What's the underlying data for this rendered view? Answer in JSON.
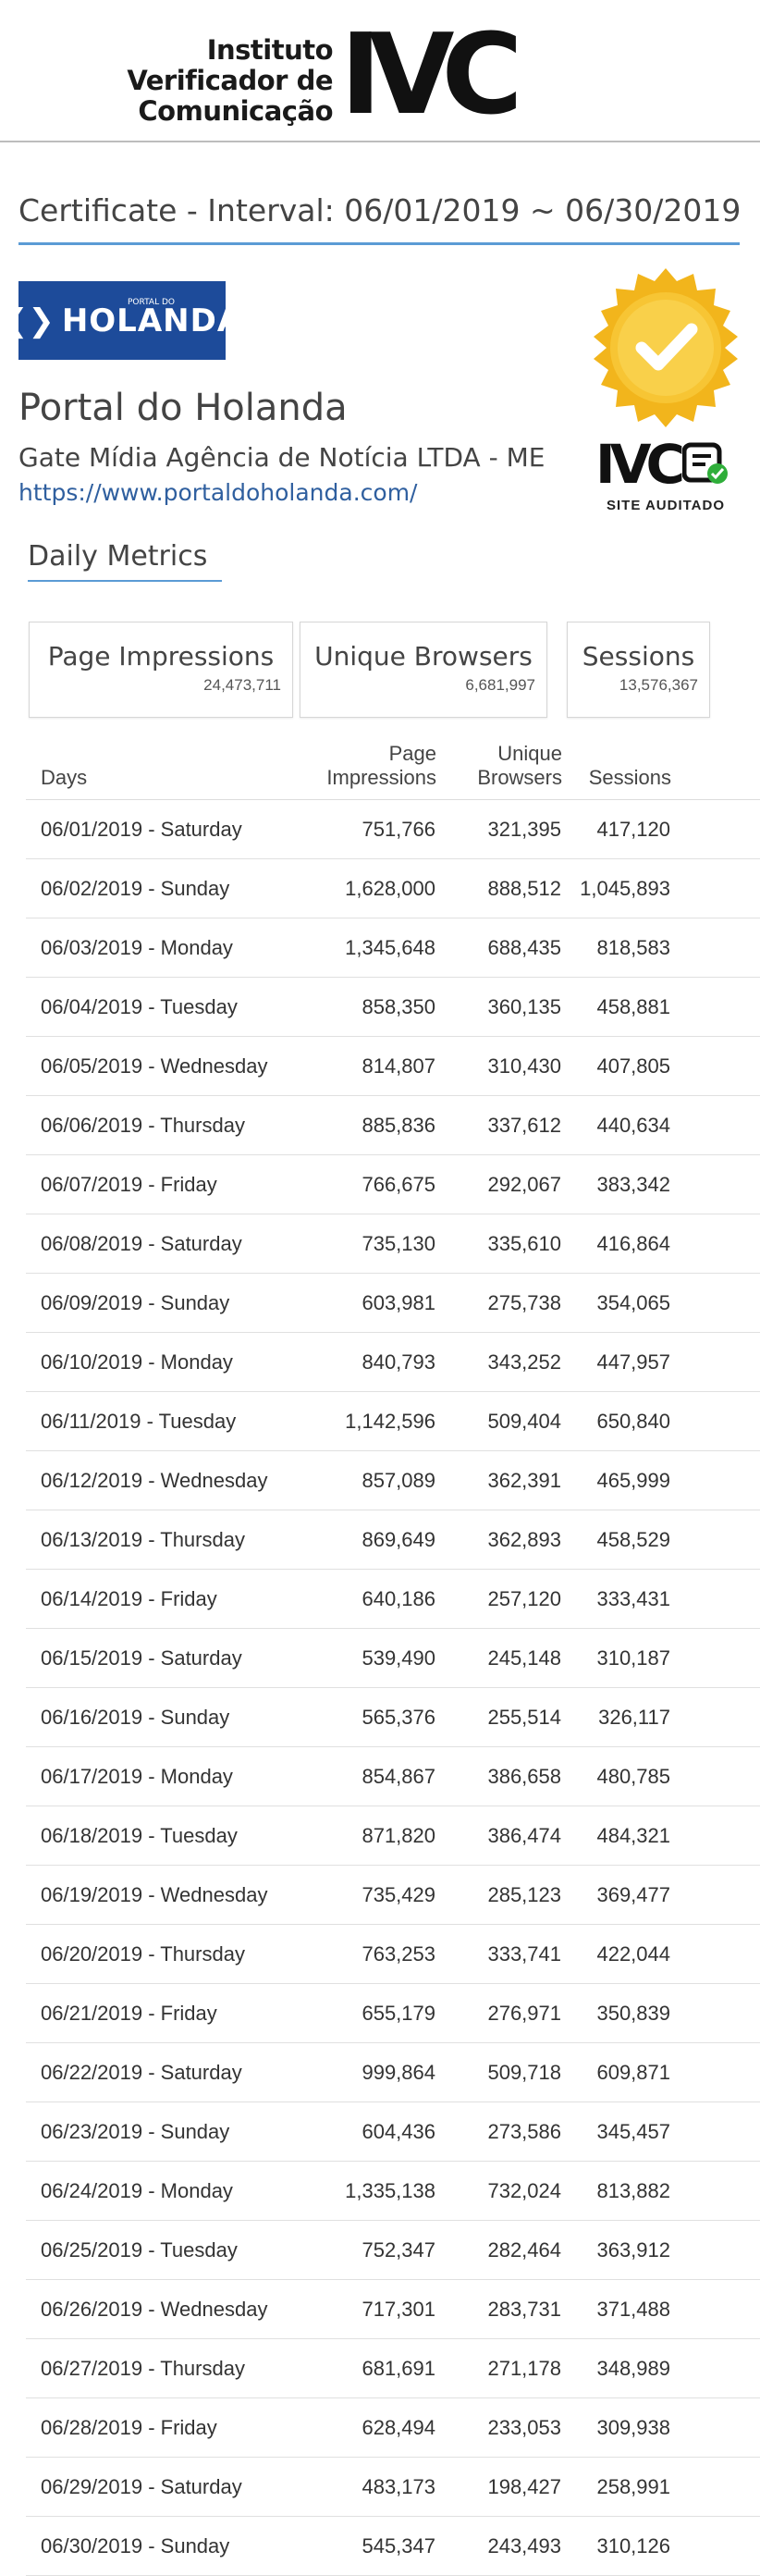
{
  "header": {
    "logo_line1": "Instituto",
    "logo_line2": "Verificador de",
    "logo_line3": "Comunicação",
    "logo_mark": "IVC"
  },
  "certificate_title": "Certificate - Interval: 06/01/2019 ~ 06/30/2019",
  "site": {
    "logo_small_text": "PORTAL DO",
    "logo_text": "HOLANDA",
    "name": "Portal do Holanda",
    "company": "Gate Mídia Agência de Notícia LTDA - ME",
    "url": "https://www.portaldoholanda.com/"
  },
  "audit_badge": {
    "mark": "IVC",
    "label": "SITE AUDITADO",
    "seal_icon": "gold-seal-check-icon",
    "doc_icon": "document-check-icon"
  },
  "tab_label": "Daily Metrics",
  "kpis": [
    {
      "label": "Page Impressions",
      "value": "24,473,711"
    },
    {
      "label": "Unique Browsers",
      "value": "6,681,997"
    },
    {
      "label": "Sessions",
      "value": "13,576,367"
    }
  ],
  "table": {
    "headers": {
      "days": "Days",
      "pi_line1": "Page",
      "pi_line2": "Impressions",
      "ub_line1": "Unique",
      "ub_line2": "Browsers",
      "sessions": "Sessions"
    },
    "rows": [
      {
        "day": "06/01/2019 - Saturday",
        "pi": "751,766",
        "ub": "321,395",
        "s": "417,120"
      },
      {
        "day": "06/02/2019 - Sunday",
        "pi": "1,628,000",
        "ub": "888,512",
        "s": "1,045,893"
      },
      {
        "day": "06/03/2019 - Monday",
        "pi": "1,345,648",
        "ub": "688,435",
        "s": "818,583"
      },
      {
        "day": "06/04/2019 - Tuesday",
        "pi": "858,350",
        "ub": "360,135",
        "s": "458,881"
      },
      {
        "day": "06/05/2019 - Wednesday",
        "pi": "814,807",
        "ub": "310,430",
        "s": "407,805"
      },
      {
        "day": "06/06/2019 - Thursday",
        "pi": "885,836",
        "ub": "337,612",
        "s": "440,634"
      },
      {
        "day": "06/07/2019 - Friday",
        "pi": "766,675",
        "ub": "292,067",
        "s": "383,342"
      },
      {
        "day": "06/08/2019 - Saturday",
        "pi": "735,130",
        "ub": "335,610",
        "s": "416,864"
      },
      {
        "day": "06/09/2019 - Sunday",
        "pi": "603,981",
        "ub": "275,738",
        "s": "354,065"
      },
      {
        "day": "06/10/2019 - Monday",
        "pi": "840,793",
        "ub": "343,252",
        "s": "447,957"
      },
      {
        "day": "06/11/2019 - Tuesday",
        "pi": "1,142,596",
        "ub": "509,404",
        "s": "650,840"
      },
      {
        "day": "06/12/2019 - Wednesday",
        "pi": "857,089",
        "ub": "362,391",
        "s": "465,999"
      },
      {
        "day": "06/13/2019 - Thursday",
        "pi": "869,649",
        "ub": "362,893",
        "s": "458,529"
      },
      {
        "day": "06/14/2019 - Friday",
        "pi": "640,186",
        "ub": "257,120",
        "s": "333,431"
      },
      {
        "day": "06/15/2019 - Saturday",
        "pi": "539,490",
        "ub": "245,148",
        "s": "310,187"
      },
      {
        "day": "06/16/2019 - Sunday",
        "pi": "565,376",
        "ub": "255,514",
        "s": "326,117"
      },
      {
        "day": "06/17/2019 - Monday",
        "pi": "854,867",
        "ub": "386,658",
        "s": "480,785"
      },
      {
        "day": "06/18/2019 - Tuesday",
        "pi": "871,820",
        "ub": "386,474",
        "s": "484,321"
      },
      {
        "day": "06/19/2019 - Wednesday",
        "pi": "735,429",
        "ub": "285,123",
        "s": "369,477"
      },
      {
        "day": "06/20/2019 - Thursday",
        "pi": "763,253",
        "ub": "333,741",
        "s": "422,044"
      },
      {
        "day": "06/21/2019 - Friday",
        "pi": "655,179",
        "ub": "276,971",
        "s": "350,839"
      },
      {
        "day": "06/22/2019 - Saturday",
        "pi": "999,864",
        "ub": "509,718",
        "s": "609,871"
      },
      {
        "day": "06/23/2019 - Sunday",
        "pi": "604,436",
        "ub": "273,586",
        "s": "345,457"
      },
      {
        "day": "06/24/2019 - Monday",
        "pi": "1,335,138",
        "ub": "732,024",
        "s": "813,882"
      },
      {
        "day": "06/25/2019 - Tuesday",
        "pi": "752,347",
        "ub": "282,464",
        "s": "363,912"
      },
      {
        "day": "06/26/2019 - Wednesday",
        "pi": "717,301",
        "ub": "283,731",
        "s": "371,488"
      },
      {
        "day": "06/27/2019 - Thursday",
        "pi": "681,691",
        "ub": "271,178",
        "s": "348,989"
      },
      {
        "day": "06/28/2019 - Friday",
        "pi": "628,494",
        "ub": "233,053",
        "s": "309,938"
      },
      {
        "day": "06/29/2019 - Saturday",
        "pi": "483,173",
        "ub": "198,427",
        "s": "258,991"
      },
      {
        "day": "06/30/2019 - Sunday",
        "pi": "545,347",
        "ub": "243,493",
        "s": "310,126"
      }
    ]
  }
}
